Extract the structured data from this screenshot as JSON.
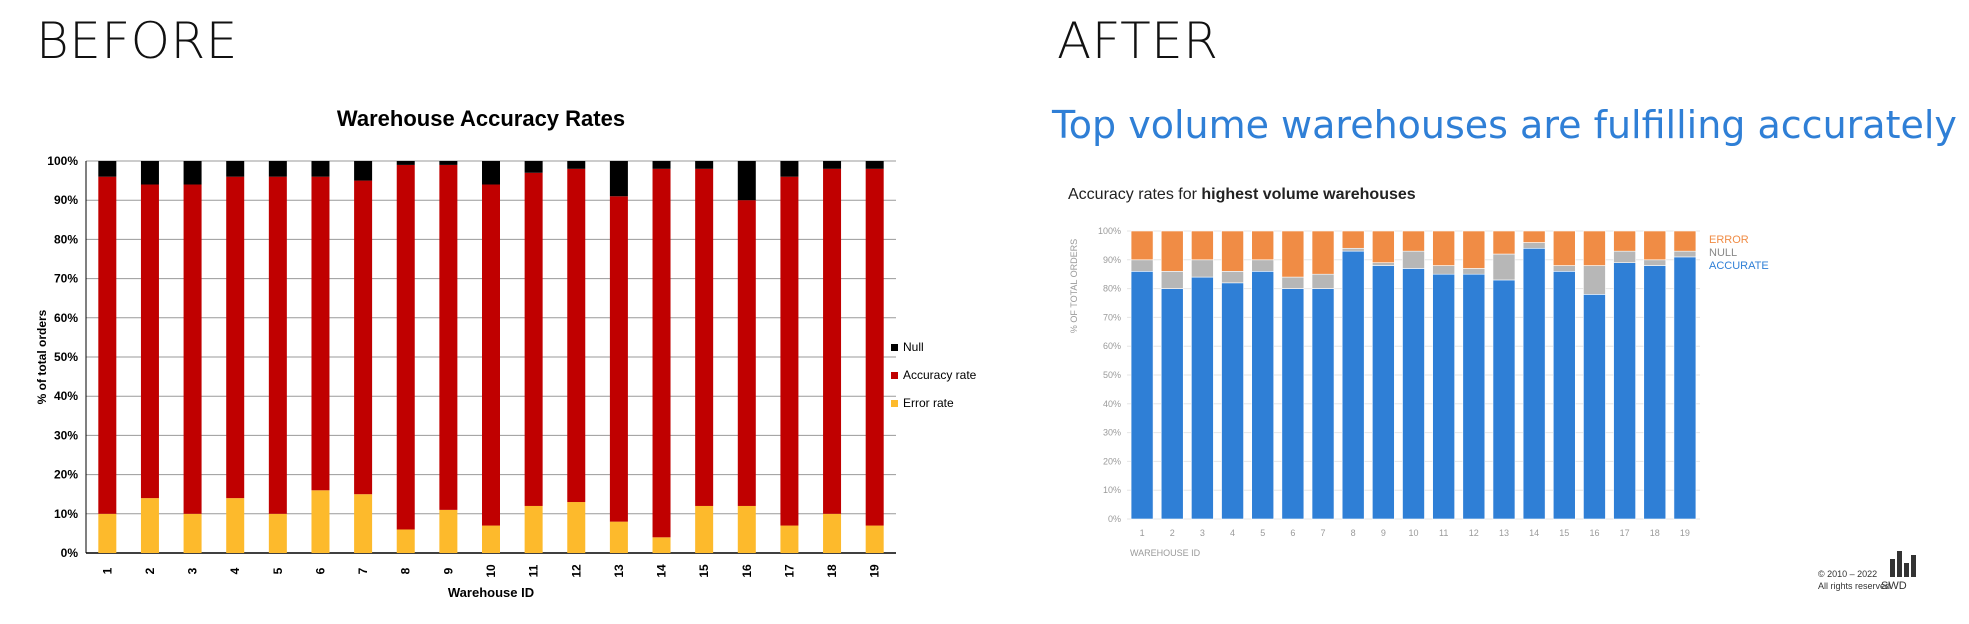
{
  "panels": {
    "before_label": "BEFORE",
    "after_label": "AFTER"
  },
  "chart_data": [
    {
      "type": "bar",
      "stacked": true,
      "title": "Warehouse Accuracy Rates",
      "xlabel": "Warehouse ID",
      "ylabel": "% of total orders",
      "ylim": [
        0,
        100
      ],
      "yticks": [
        "0%",
        "10%",
        "20%",
        "30%",
        "40%",
        "50%",
        "60%",
        "70%",
        "80%",
        "90%",
        "100%"
      ],
      "grid": true,
      "legend_position": "right",
      "categories": [
        "1",
        "2",
        "3",
        "4",
        "5",
        "6",
        "7",
        "8",
        "9",
        "10",
        "11",
        "12",
        "13",
        "14",
        "15",
        "16",
        "17",
        "18",
        "19"
      ],
      "series": [
        {
          "name": "Error rate",
          "color": "#FDBA2C",
          "values": [
            10,
            14,
            10,
            14,
            10,
            16,
            15,
            6,
            11,
            7,
            12,
            13,
            8,
            4,
            12,
            12,
            7,
            10,
            7
          ]
        },
        {
          "name": "Accuracy rate",
          "color": "#C00000",
          "values": [
            86,
            80,
            84,
            82,
            86,
            80,
            80,
            93,
            88,
            87,
            85,
            85,
            83,
            94,
            86,
            78,
            89,
            88,
            91
          ]
        },
        {
          "name": "Null",
          "color": "#000000",
          "values": [
            4,
            6,
            6,
            4,
            4,
            4,
            5,
            1,
            1,
            6,
            3,
            2,
            9,
            2,
            2,
            10,
            4,
            2,
            2
          ]
        }
      ],
      "legend_order": [
        "Null",
        "Accuracy rate",
        "Error rate"
      ]
    },
    {
      "type": "bar",
      "stacked": true,
      "headline": "Top volume warehouses are fulfilling accurately",
      "subtitle_prefix": "Accuracy rates for ",
      "subtitle_bold": "highest volume warehouses",
      "xlabel": "WAREHOUSE ID",
      "ylabel": "% OF TOTAL ORDERS",
      "ylim": [
        0,
        100
      ],
      "yticks": [
        "0%",
        "10%",
        "20%",
        "30%",
        "40%",
        "50%",
        "60%",
        "70%",
        "80%",
        "90%",
        "100%"
      ],
      "grid": true,
      "legend_position": "right-top",
      "categories": [
        "1",
        "2",
        "3",
        "4",
        "5",
        "6",
        "7",
        "8",
        "9",
        "10",
        "11",
        "12",
        "13",
        "14",
        "15",
        "16",
        "17",
        "18",
        "19"
      ],
      "series": [
        {
          "name": "ACCURATE",
          "color": "#2F7FD6",
          "values": [
            86,
            80,
            84,
            82,
            86,
            80,
            80,
            93,
            88,
            87,
            85,
            85,
            83,
            94,
            86,
            78,
            89,
            88,
            91
          ]
        },
        {
          "name": "NULL",
          "color": "#B7B7B7",
          "values": [
            4,
            6,
            6,
            4,
            4,
            4,
            5,
            1,
            1,
            6,
            3,
            2,
            9,
            2,
            2,
            10,
            4,
            2,
            2
          ]
        },
        {
          "name": "ERROR",
          "color": "#F08C45",
          "values": [
            10,
            14,
            10,
            14,
            10,
            16,
            15,
            6,
            11,
            7,
            12,
            13,
            8,
            4,
            12,
            12,
            7,
            10,
            7
          ]
        }
      ],
      "legend_order": [
        "ERROR",
        "NULL",
        "ACCURATE"
      ]
    }
  ],
  "footer": {
    "copyright_line1": "© 2010 – 2022",
    "copyright_line2": "All rights reserved",
    "brand": "SWD"
  }
}
